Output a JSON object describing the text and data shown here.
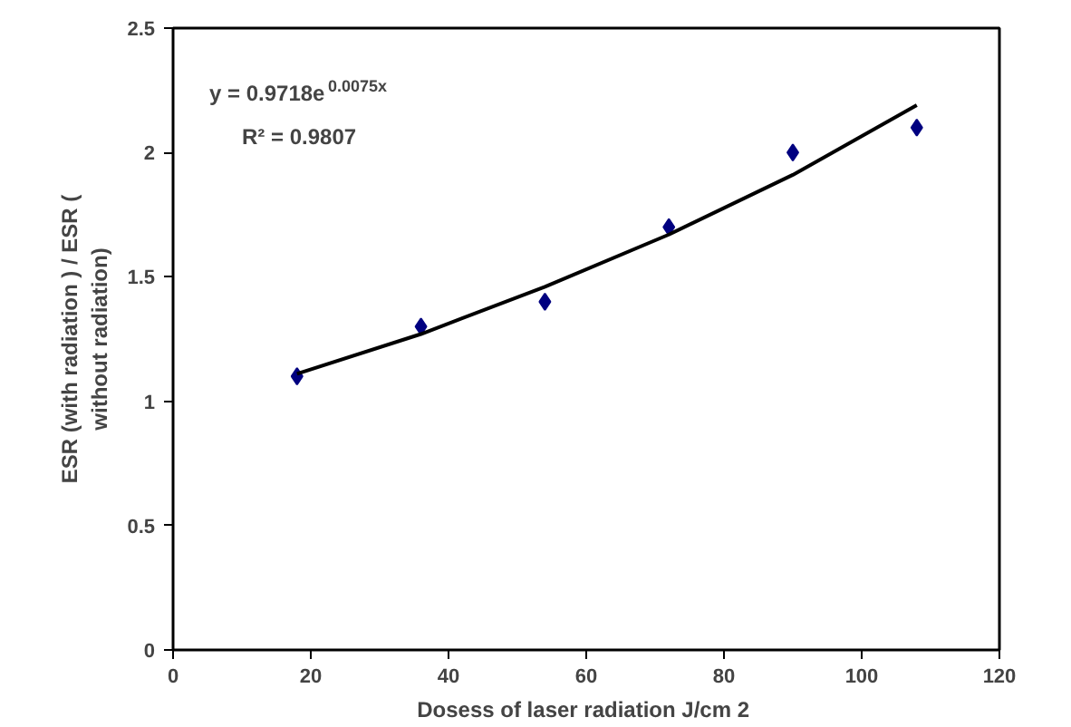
{
  "chart_data": {
    "type": "scatter",
    "xlabel": "Dosess of laser radiation  J/cm 2",
    "ylabel": "ESR (with radiation ) / ESR ( without radiation)",
    "annotations": [
      "y = 0.9718e$^{0.0075x}$",
      "R² = 0.9807"
    ],
    "series": [
      {
        "color": "#000080",
        "x": [
          18,
          36,
          54,
          72,
          90,
          108
        ],
        "values": [
          1.1,
          1.3,
          1.4,
          1.7,
          2.0,
          2.1
        ],
        "marker": "diamond"
      },
      {
        "type": "line",
        "color": "#000000",
        "x": [
          18,
          36,
          54,
          72,
          90,
          108
        ],
        "values": [
          1.11,
          1.27,
          1.46,
          1.67,
          1.91,
          2.19
        ],
        "marker": "none"
      }
    ],
    "xlim": [
      0,
      120
    ],
    "xticks": [
      0,
      20,
      40,
      60,
      80,
      100,
      120
    ],
    "ylim": [
      0,
      2.5
    ],
    "yticks": [
      0,
      0.5,
      1,
      1.5,
      2,
      2.5
    ],
    "grid": false
  }
}
